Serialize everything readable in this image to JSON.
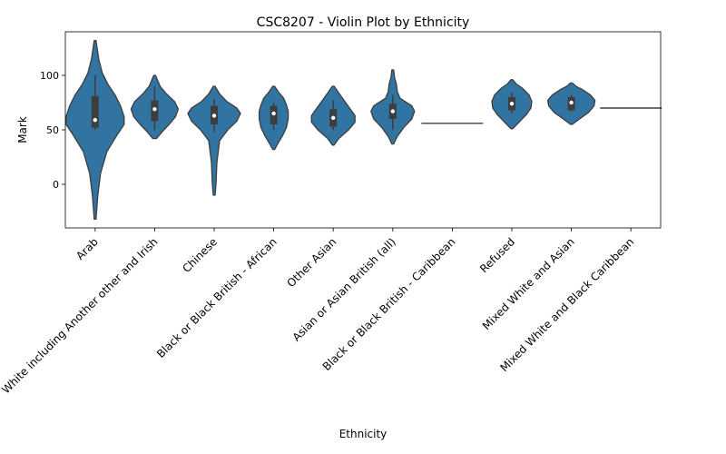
{
  "chart_data": {
    "type": "violin",
    "title": "CSC8207 - Violin Plot by Ethnicity",
    "xlabel": "Ethnicity",
    "ylabel": "Mark",
    "ylim": [
      -40,
      140
    ],
    "yticks": [
      0,
      50,
      100
    ],
    "grid": false,
    "color": "#3274a1",
    "categories": [
      "Arab",
      "White including Another other and Irish",
      "Chinese",
      "Black or Black British - African",
      "Other Asian",
      "Asian or Asian British (all)",
      "Black or Black British - Caribbean",
      "Refused",
      "Mixed White and Asian",
      "Mixed White and Black Caribbean"
    ],
    "series": [
      {
        "min": -32,
        "max": 132,
        "q1": 52,
        "median": 59,
        "q3": 81,
        "whisker_low": 50,
        "whisker_high": 100,
        "profile": [
          [
            -32,
            1
          ],
          [
            -10,
            3
          ],
          [
            10,
            6
          ],
          [
            30,
            13
          ],
          [
            45,
            24
          ],
          [
            55,
            32
          ],
          [
            62,
            32
          ],
          [
            72,
            28
          ],
          [
            82,
            22
          ],
          [
            92,
            14
          ],
          [
            102,
            8
          ],
          [
            115,
            4
          ],
          [
            132,
            1
          ]
        ]
      },
      {
        "min": 42,
        "max": 100,
        "q1": 58,
        "median": 69,
        "q3": 77,
        "whisker_low": 50,
        "whisker_high": 90,
        "profile": [
          [
            42,
            2
          ],
          [
            48,
            8
          ],
          [
            55,
            16
          ],
          [
            62,
            23
          ],
          [
            69,
            26
          ],
          [
            76,
            22
          ],
          [
            83,
            13
          ],
          [
            90,
            6
          ],
          [
            100,
            1
          ]
        ]
      },
      {
        "min": -10,
        "max": 90,
        "q1": 55,
        "median": 63,
        "q3": 72,
        "whisker_low": 48,
        "whisker_high": 78,
        "profile": [
          [
            -10,
            1
          ],
          [
            0,
            2
          ],
          [
            20,
            3
          ],
          [
            40,
            6
          ],
          [
            50,
            15
          ],
          [
            58,
            25
          ],
          [
            65,
            29
          ],
          [
            70,
            25
          ],
          [
            76,
            14
          ],
          [
            83,
            6
          ],
          [
            90,
            1
          ]
        ]
      },
      {
        "min": 32,
        "max": 90,
        "q1": 55,
        "median": 65,
        "q3": 72,
        "whisker_low": 50,
        "whisker_high": 75,
        "profile": [
          [
            32,
            1
          ],
          [
            38,
            5
          ],
          [
            45,
            10
          ],
          [
            52,
            14
          ],
          [
            60,
            16
          ],
          [
            67,
            16
          ],
          [
            73,
            14
          ],
          [
            79,
            11
          ],
          [
            85,
            5
          ],
          [
            90,
            1
          ]
        ]
      },
      {
        "min": 36,
        "max": 90,
        "q1": 53,
        "median": 61,
        "q3": 69,
        "whisker_low": 50,
        "whisker_high": 77,
        "profile": [
          [
            36,
            1
          ],
          [
            42,
            6
          ],
          [
            50,
            17
          ],
          [
            57,
            24
          ],
          [
            63,
            24
          ],
          [
            70,
            18
          ],
          [
            77,
            12
          ],
          [
            84,
            6
          ],
          [
            90,
            1
          ]
        ]
      },
      {
        "min": 37,
        "max": 105,
        "q1": 60,
        "median": 67,
        "q3": 74,
        "whisker_low": 50,
        "whisker_high": 82,
        "profile": [
          [
            37,
            1
          ],
          [
            44,
            5
          ],
          [
            52,
            12
          ],
          [
            60,
            21
          ],
          [
            67,
            24
          ],
          [
            72,
            21
          ],
          [
            79,
            8
          ],
          [
            85,
            5
          ],
          [
            92,
            4
          ],
          [
            98,
            2
          ],
          [
            105,
            1
          ]
        ]
      },
      {
        "constant": 56
      },
      {
        "min": 51,
        "max": 96,
        "q1": 68,
        "median": 74,
        "q3": 80,
        "whisker_low": 65,
        "whisker_high": 84,
        "profile": [
          [
            51,
            1
          ],
          [
            57,
            8
          ],
          [
            64,
            16
          ],
          [
            70,
            21
          ],
          [
            76,
            22
          ],
          [
            82,
            19
          ],
          [
            88,
            12
          ],
          [
            92,
            5
          ],
          [
            96,
            1
          ]
        ]
      },
      {
        "min": 55,
        "max": 93,
        "q1": 68,
        "median": 75,
        "q3": 80,
        "whisker_low": 67,
        "whisker_high": 82,
        "profile": [
          [
            55,
            1
          ],
          [
            60,
            9
          ],
          [
            66,
            19
          ],
          [
            72,
            25
          ],
          [
            77,
            26
          ],
          [
            82,
            21
          ],
          [
            87,
            12
          ],
          [
            90,
            5
          ],
          [
            93,
            1
          ]
        ]
      },
      {
        "constant": 70
      }
    ]
  }
}
